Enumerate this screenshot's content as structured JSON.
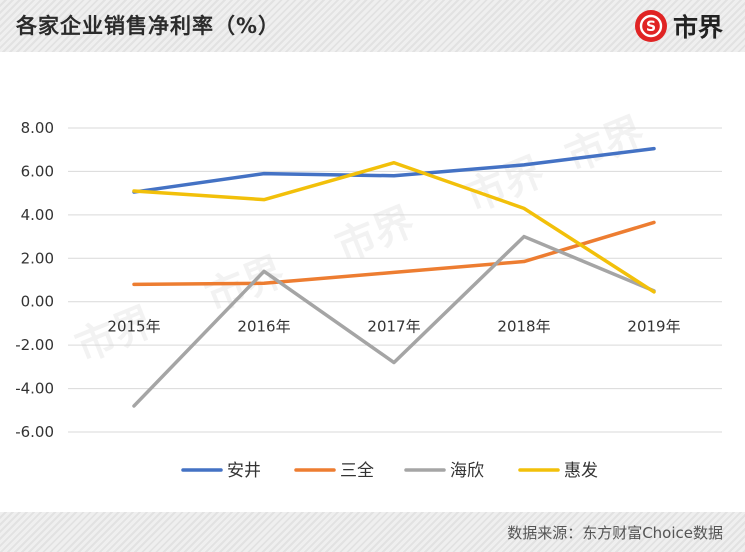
{
  "header": {
    "title": "各家企业销售净利率（%）",
    "logo_text": "市界",
    "logo_glyph": "S"
  },
  "footer": {
    "source": "数据来源：东方财富Choice数据"
  },
  "watermark": "市界",
  "chart_data": {
    "type": "line",
    "title": "各家企业销售净利率（%）",
    "xlabel": "",
    "ylabel": "",
    "categories": [
      "2015年",
      "2016年",
      "2017年",
      "2018年",
      "2019年"
    ],
    "yticks": [
      "8.00",
      "6.00",
      "4.00",
      "2.00",
      "0.00",
      "-2.00",
      "-4.00",
      "-6.00"
    ],
    "ylim": [
      -6,
      8
    ],
    "grid": true,
    "legend_position": "bottom",
    "series": [
      {
        "name": "安井",
        "color": "#4472C4",
        "values": [
          5.05,
          5.9,
          5.8,
          6.3,
          7.05
        ]
      },
      {
        "name": "三全",
        "color": "#ED7D31",
        "values": [
          0.8,
          0.85,
          1.35,
          1.85,
          3.65
        ]
      },
      {
        "name": "海欣",
        "color": "#A5A5A5",
        "values": [
          -4.8,
          1.4,
          -2.8,
          3.0,
          0.5
        ]
      },
      {
        "name": "惠发",
        "color": "#F2C00A",
        "values": [
          5.1,
          4.7,
          6.4,
          4.3,
          0.45
        ]
      }
    ]
  }
}
